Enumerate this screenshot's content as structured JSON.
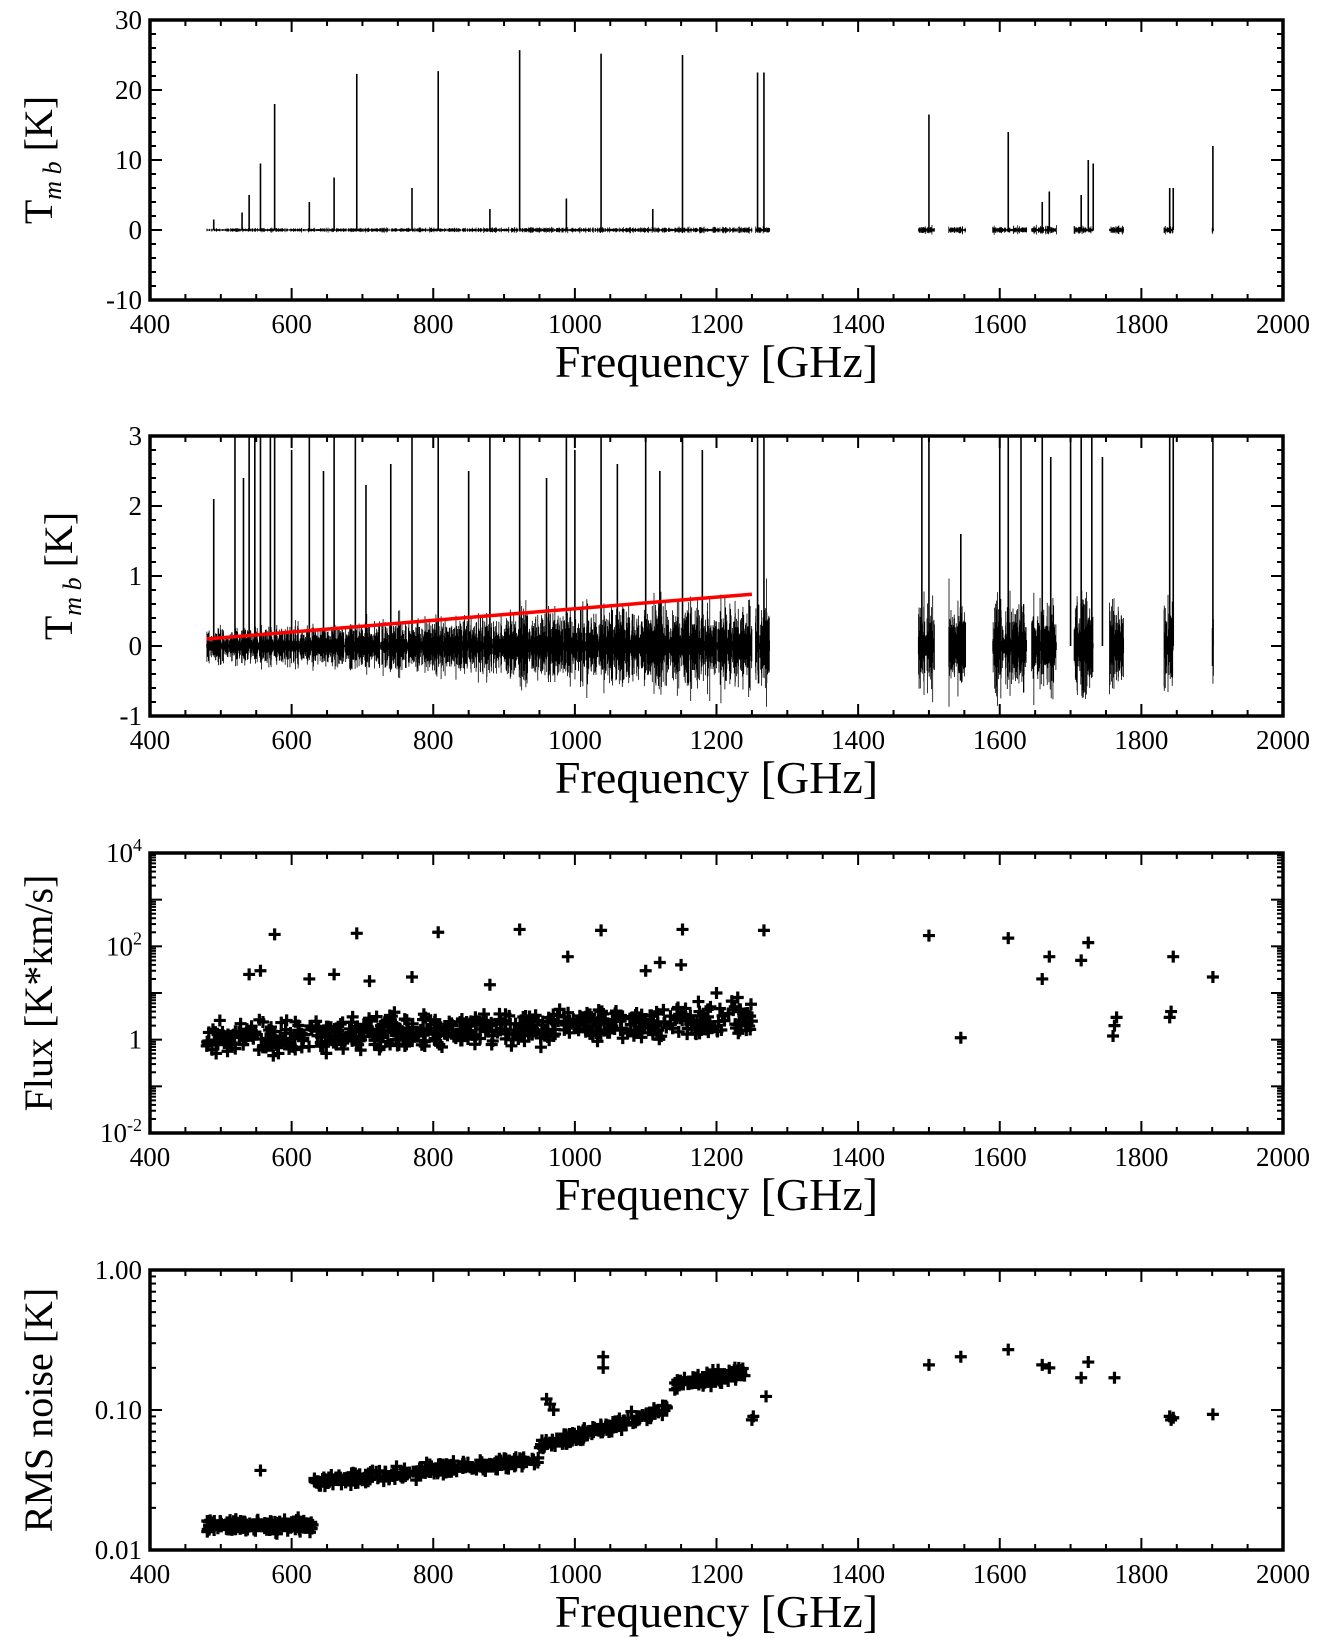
{
  "chart_data": [
    {
      "type": "line",
      "xlabel": "Frequency [GHz]",
      "ylabel_main": "T",
      "ylabel_sub": "m b",
      "ylabel_unit": "[K]",
      "xlim": [
        400,
        2000
      ],
      "ylim": [
        -10,
        30
      ],
      "x_ticks": [
        "400",
        "600",
        "800",
        "1000",
        "1200",
        "1400",
        "1600",
        "1800",
        "2000"
      ],
      "y_ticks": [
        "-10",
        "0",
        "10",
        "20",
        "30"
      ],
      "band_ranges": [
        [
          480,
          1250
        ],
        [
          1255,
          1275
        ],
        [
          1485,
          1508
        ],
        [
          1528,
          1552
        ],
        [
          1590,
          1638
        ],
        [
          1645,
          1680
        ],
        [
          1705,
          1732
        ],
        [
          1755,
          1775
        ],
        [
          1832,
          1845
        ],
        [
          1900,
          1902
        ]
      ],
      "baseline_noise": 0.6,
      "lines": [
        [
          490,
          1.5
        ],
        [
          530,
          2.5
        ],
        [
          540,
          5
        ],
        [
          556,
          9.5
        ],
        [
          576,
          18
        ],
        [
          625,
          4
        ],
        [
          660,
          7.5
        ],
        [
          692,
          22.3
        ],
        [
          770,
          6
        ],
        [
          807,
          22.7
        ],
        [
          880,
          3
        ],
        [
          922,
          25.7
        ],
        [
          988,
          4.5
        ],
        [
          1037,
          25.2
        ],
        [
          1110,
          3
        ],
        [
          1152,
          25
        ],
        [
          1258,
          22.5
        ],
        [
          1267,
          22.5
        ],
        [
          1500,
          16.5
        ],
        [
          1612,
          14
        ],
        [
          1660,
          4
        ],
        [
          1670,
          5.5
        ],
        [
          1715,
          5
        ],
        [
          1725,
          10
        ],
        [
          1732,
          9.5
        ],
        [
          1840,
          6
        ],
        [
          1845,
          6
        ],
        [
          1901,
          12
        ]
      ],
      "series": [
        {
          "name": "",
          "values": []
        }
      ]
    },
    {
      "type": "line",
      "xlabel": "Frequency [GHz]",
      "ylabel_main": "T",
      "ylabel_sub": "m b",
      "ylabel_unit": "[K]",
      "xlim": [
        400,
        2000
      ],
      "ylim": [
        -1,
        3
      ],
      "x_ticks": [
        "400",
        "600",
        "800",
        "1000",
        "1200",
        "1400",
        "1600",
        "1800",
        "2000"
      ],
      "y_ticks": [
        "-1",
        "0",
        "1",
        "2",
        "3"
      ],
      "band_ranges": [
        [
          480,
          1250
        ],
        [
          1255,
          1275
        ],
        [
          1485,
          1508
        ],
        [
          1528,
          1552
        ],
        [
          1590,
          1638
        ],
        [
          1645,
          1680
        ],
        [
          1705,
          1732
        ],
        [
          1755,
          1775
        ],
        [
          1832,
          1845
        ],
        [
          1900,
          1902
        ]
      ],
      "noise_trend": {
        "x": [
          480,
          1250
        ],
        "half_width": [
          0.35,
          1.0
        ]
      },
      "lines": [
        [
          490,
          2.1
        ],
        [
          520,
          3
        ],
        [
          532,
          2.4
        ],
        [
          540,
          3
        ],
        [
          548,
          3
        ],
        [
          556,
          3
        ],
        [
          570,
          3
        ],
        [
          576,
          3
        ],
        [
          600,
          2.8
        ],
        [
          625,
          3
        ],
        [
          645,
          2.5
        ],
        [
          660,
          3
        ],
        [
          690,
          3
        ],
        [
          705,
          2.3
        ],
        [
          740,
          2.6
        ],
        [
          770,
          3
        ],
        [
          807,
          3
        ],
        [
          850,
          2.5
        ],
        [
          880,
          3
        ],
        [
          922,
          3
        ],
        [
          960,
          2.4
        ],
        [
          988,
          3
        ],
        [
          1000,
          2.8
        ],
        [
          1037,
          3
        ],
        [
          1060,
          2.6
        ],
        [
          1100,
          3
        ],
        [
          1120,
          2.5
        ],
        [
          1152,
          3
        ],
        [
          1180,
          2.8
        ],
        [
          1258,
          3
        ],
        [
          1267,
          3
        ],
        [
          1490,
          3
        ],
        [
          1500,
          3
        ],
        [
          1545,
          1.6
        ],
        [
          1600,
          3
        ],
        [
          1612,
          3
        ],
        [
          1630,
          3
        ],
        [
          1660,
          3
        ],
        [
          1672,
          2.7
        ],
        [
          1700,
          3
        ],
        [
          1715,
          3
        ],
        [
          1730,
          3
        ],
        [
          1745,
          2.7
        ],
        [
          1840,
          3
        ],
        [
          1845,
          3
        ],
        [
          1901,
          3
        ]
      ],
      "trend_line": {
        "x": [
          480,
          1250
        ],
        "y": [
          0.1,
          0.74
        ],
        "color": "#ff0000"
      },
      "series": [
        {
          "name": "",
          "values": []
        }
      ]
    },
    {
      "type": "scatter",
      "xlabel": "Frequency [GHz]",
      "ylabel": "Flux [K*km/s]",
      "xlim": [
        400,
        2000
      ],
      "ylim": [
        0.01,
        10000
      ],
      "yscale": "log",
      "x_ticks": [
        "400",
        "600",
        "800",
        "1000",
        "1200",
        "1400",
        "1600",
        "1800",
        "2000"
      ],
      "y_ticks": [
        {
          "base": "10",
          "exp": "4"
        },
        {
          "base": "10",
          "exp": "2"
        },
        {
          "base": "1",
          "exp": ""
        },
        {
          "base": "10",
          "exp": "-2"
        }
      ],
      "cloud": {
        "x": [
          480,
          1250
        ],
        "log_center_start": 0.0,
        "log_center_end": 0.45,
        "log_spread": 0.5,
        "count": 620
      },
      "points": [
        [
          576,
          180
        ],
        [
          692,
          190
        ],
        [
          807,
          200
        ],
        [
          922,
          230
        ],
        [
          1037,
          220
        ],
        [
          1152,
          230
        ],
        [
          1267,
          220
        ],
        [
          1500,
          170
        ],
        [
          1612,
          150
        ],
        [
          1660,
          20
        ],
        [
          1670,
          60
        ],
        [
          1715,
          50
        ],
        [
          1725,
          120
        ],
        [
          1760,
          1.2
        ],
        [
          1762,
          2
        ],
        [
          1765,
          3
        ],
        [
          1840,
          3
        ],
        [
          1842,
          4
        ],
        [
          1845,
          60
        ],
        [
          1901,
          22
        ],
        [
          1545,
          1.1
        ],
        [
          1100,
          30
        ],
        [
          1120,
          45
        ],
        [
          1150,
          40
        ],
        [
          990,
          60
        ],
        [
          880,
          15
        ],
        [
          770,
          22
        ],
        [
          710,
          18
        ],
        [
          660,
          25
        ],
        [
          625,
          20
        ],
        [
          556,
          30
        ],
        [
          540,
          25
        ],
        [
          1200,
          10
        ],
        [
          1230,
          8
        ],
        [
          1240,
          3
        ],
        [
          1250,
          2.5
        ]
      ],
      "series": [
        {
          "name": "",
          "values": []
        }
      ]
    },
    {
      "type": "scatter",
      "xlabel": "Frequency [GHz]",
      "ylabel": "RMS noise [K]",
      "xlim": [
        400,
        2000
      ],
      "ylim": [
        0.01,
        1.0
      ],
      "yscale": "log",
      "x_ticks": [
        "400",
        "600",
        "800",
        "1000",
        "1200",
        "1400",
        "1600",
        "1800",
        "2000"
      ],
      "y_ticks": [
        "0.01",
        "0.10",
        "1.00"
      ],
      "cloud_segments": [
        {
          "x": [
            480,
            630
          ],
          "rms_start": 0.015,
          "rms_end": 0.015,
          "count": 160
        },
        {
          "x": [
            632,
            950
          ],
          "rms_start": 0.03,
          "rms_end": 0.045,
          "count": 220
        },
        {
          "x": [
            950,
            1130
          ],
          "rms_start": 0.055,
          "rms_end": 0.1,
          "count": 140
        },
        {
          "x": [
            1140,
            1240
          ],
          "rms_start": 0.15,
          "rms_end": 0.19,
          "count": 90
        }
      ],
      "points": [
        [
          556,
          0.037
        ],
        [
          1040,
          0.24
        ],
        [
          1040,
          0.2
        ],
        [
          1250,
          0.085
        ],
        [
          1252,
          0.09
        ],
        [
          1270,
          0.125
        ],
        [
          1500,
          0.21
        ],
        [
          1545,
          0.24
        ],
        [
          1612,
          0.27
        ],
        [
          1660,
          0.21
        ],
        [
          1670,
          0.2
        ],
        [
          1715,
          0.17
        ],
        [
          1725,
          0.22
        ],
        [
          1762,
          0.17
        ],
        [
          1840,
          0.09
        ],
        [
          1842,
          0.085
        ],
        [
          1845,
          0.088
        ],
        [
          1901,
          0.093
        ],
        [
          960,
          0.12
        ],
        [
          965,
          0.11
        ],
        [
          970,
          0.1
        ]
      ],
      "series": [
        {
          "name": "",
          "values": []
        }
      ]
    }
  ]
}
